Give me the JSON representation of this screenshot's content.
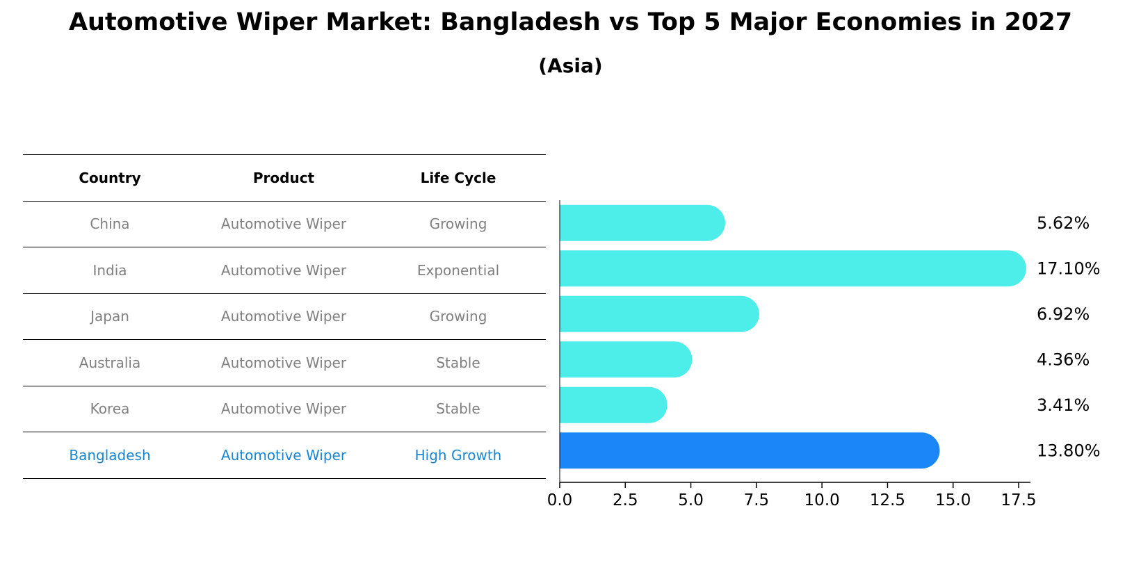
{
  "title": "Automotive Wiper Market: Bangladesh vs Top 5 Major Economies in 2027",
  "subtitle": "(Asia)",
  "table": {
    "headers": [
      "Country",
      "Product",
      "Life Cycle"
    ],
    "rows": [
      {
        "country": "China",
        "product": "Automotive Wiper",
        "life_cycle": "Growing"
      },
      {
        "country": "India",
        "product": "Automotive Wiper",
        "life_cycle": "Exponential"
      },
      {
        "country": "Japan",
        "product": "Automotive Wiper",
        "life_cycle": "Growing"
      },
      {
        "country": "Australia",
        "product": "Automotive Wiper",
        "life_cycle": "Stable"
      },
      {
        "country": "Korea",
        "product": "Automotive Wiper",
        "life_cycle": "Stable"
      },
      {
        "country": "Bangladesh",
        "product": "Automotive Wiper",
        "life_cycle": "High Growth"
      }
    ]
  },
  "chart_data": {
    "type": "bar",
    "orientation": "horizontal",
    "categories": [
      "China",
      "India",
      "Japan",
      "Australia",
      "Korea",
      "Bangladesh"
    ],
    "values": [
      5.62,
      17.1,
      6.92,
      4.36,
      3.41,
      13.8
    ],
    "value_labels": [
      "5.62%",
      "17.10%",
      "6.92%",
      "4.36%",
      "3.41%",
      "13.80%"
    ],
    "xticks": [
      "0.0",
      "2.5",
      "5.0",
      "7.5",
      "10.0",
      "12.5",
      "15.0",
      "17.5"
    ],
    "xlim": [
      0,
      17.95
    ],
    "xlabel": "",
    "ylabel": "",
    "grid": false,
    "highlight_category": "Bangladesh",
    "colors": {
      "default": "#4deeea",
      "highlight": "#1a86f8",
      "highlight_text": "#1a86d0"
    }
  }
}
